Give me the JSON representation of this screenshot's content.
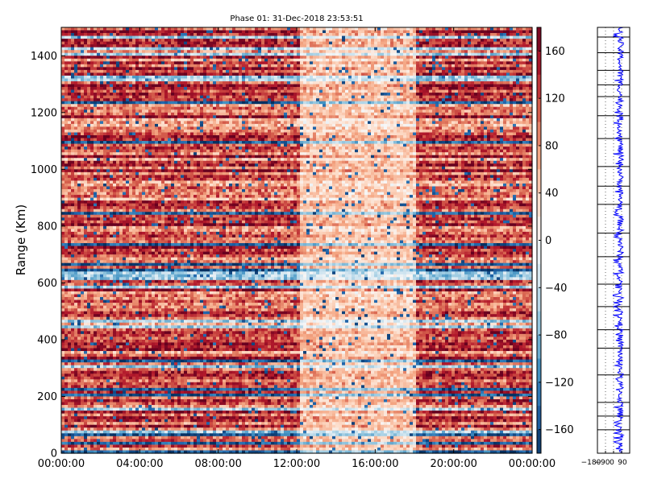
{
  "chart_data": [
    {
      "type": "heatmap",
      "title": "Phase 01: 31-Dec-2018 23:53:51",
      "ylabel": "Range (Km)",
      "xlabel": "",
      "x_ticks": [
        "00:00:00",
        "04:00:00",
        "08:00:00",
        "12:00:00",
        "16:00:00",
        "20:00:00",
        "00:00:00"
      ],
      "y_ticks": [
        "0",
        "200",
        "400",
        "600",
        "800",
        "1000",
        "1200",
        "1400"
      ],
      "xlim": [
        "00:00:00",
        "00:00:00"
      ],
      "ylim": [
        0,
        1500
      ],
      "value_range": [
        -180,
        180
      ],
      "colormap": [
        "#053061",
        "#2166ac",
        "#4393c3",
        "#92c5de",
        "#d1e5f0",
        "#f7f7f7",
        "#fddbc7",
        "#f4a582",
        "#d6604d",
        "#b2182b",
        "#67001f"
      ]
    },
    {
      "type": "colorbar",
      "ticks": [
        "160",
        "120",
        "80",
        "40",
        "0",
        "−40",
        "−80",
        "−120",
        "−160"
      ],
      "range": [
        -180,
        180
      ]
    },
    {
      "type": "line",
      "x_ticks": [
        "−180",
        "−90",
        "0",
        "90"
      ],
      "xlim": [
        -180,
        180
      ],
      "ylim": [
        0,
        1500
      ],
      "line_color": "#0000ff"
    }
  ]
}
